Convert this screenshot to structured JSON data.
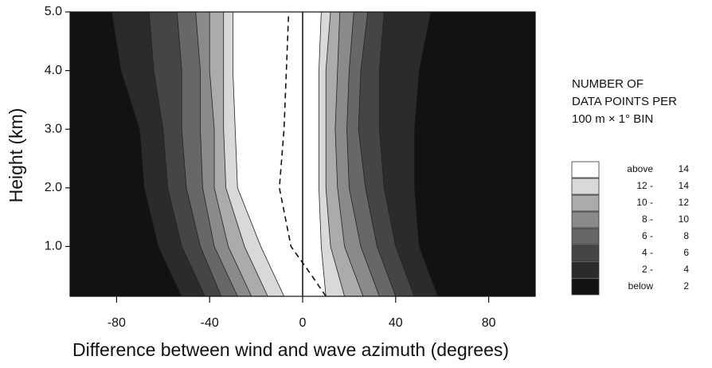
{
  "chart_data": {
    "type": "contour",
    "xlabel": "Difference between wind and wave azimuth (degrees)",
    "ylabel": "Height (km)",
    "xlim": [
      -100,
      100
    ],
    "ylim": [
      0.15,
      5.0
    ],
    "xticks": [
      -80,
      -40,
      0,
      40,
      80
    ],
    "yticks": [
      {
        "value": 1,
        "label": "1.0"
      },
      {
        "value": 2,
        "label": "2.0"
      },
      {
        "value": 3,
        "label": "3.0"
      },
      {
        "value": 4,
        "label": "4.0"
      },
      {
        "value": 5,
        "label": "5.0"
      }
    ],
    "reference_x": 0,
    "background_color": "#121212",
    "heights": [
      0.15,
      1,
      2,
      3,
      4,
      5
    ],
    "contours": [
      {
        "level": 2,
        "color": "#2b2b2b",
        "left": [
          -52,
          -62,
          -68,
          -70,
          -78,
          -82
        ],
        "right": [
          58,
          50,
          48,
          48,
          50,
          55
        ]
      },
      {
        "level": 4,
        "color": "#454545",
        "left": [
          -42,
          -52,
          -58,
          -60,
          -64,
          -66
        ],
        "right": [
          48,
          40,
          35,
          33,
          33,
          35
        ]
      },
      {
        "level": 6,
        "color": "#676767",
        "left": [
          -35,
          -44,
          -50,
          -52,
          -52,
          -54
        ],
        "right": [
          40,
          32,
          27,
          24,
          25,
          28
        ]
      },
      {
        "level": 8,
        "color": "#8a8a8a",
        "left": [
          -28,
          -38,
          -43,
          -44,
          -44,
          -46
        ],
        "right": [
          33,
          25,
          20,
          19,
          20,
          22
        ]
      },
      {
        "level": 10,
        "color": "#ababab",
        "left": [
          -22,
          -32,
          -38,
          -38,
          -40,
          -40
        ],
        "right": [
          26,
          18,
          15,
          14,
          15,
          16
        ]
      },
      {
        "level": 12,
        "color": "#d9d9d9",
        "left": [
          -15,
          -25,
          -33,
          -34,
          -34,
          -34
        ],
        "right": [
          18,
          12,
          10,
          10,
          10,
          12
        ]
      },
      {
        "level": 14,
        "color": "#ffffff",
        "left": [
          -8,
          -18,
          -28,
          -29,
          -30,
          -30
        ],
        "right": [
          10,
          8,
          7,
          7,
          7,
          8
        ]
      }
    ],
    "dashed_line": {
      "heights": [
        0.15,
        0.5,
        1,
        2,
        3,
        4,
        5
      ],
      "x": [
        10,
        4,
        -5,
        -10,
        -8,
        -7,
        -6
      ]
    },
    "legend": {
      "title": [
        "NUMBER OF",
        "DATA POINTS PER",
        "100 m × 1° BIN"
      ],
      "entries": [
        {
          "lower": "above",
          "upper": 14,
          "color": "#ffffff"
        },
        {
          "lower": "12 -",
          "upper": 14,
          "color": "#d9d9d9"
        },
        {
          "lower": "10 -",
          "upper": 12,
          "color": "#ababab"
        },
        {
          "lower": "8 -",
          "upper": 10,
          "color": "#8a8a8a"
        },
        {
          "lower": "6 -",
          "upper": 8,
          "color": "#676767"
        },
        {
          "lower": "4 -",
          "upper": 6,
          "color": "#454545"
        },
        {
          "lower": "2 -",
          "upper": 4,
          "color": "#2b2b2b"
        },
        {
          "lower": "below",
          "upper": 2,
          "color": "#121212"
        }
      ]
    }
  }
}
